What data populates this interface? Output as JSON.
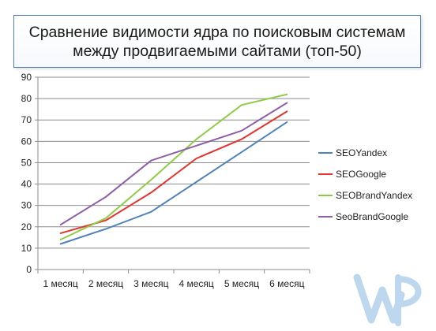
{
  "chart_data": {
    "type": "line",
    "title_lines": [
      "Сравнение видимости ядра по поисковым системам",
      "между продвигаемыми сайтами (топ-50)"
    ],
    "categories": [
      "1 месяц",
      "2 месяц",
      "3 месяц",
      "4 месяц",
      "5 месяц",
      "6 месяц"
    ],
    "ylim": [
      0,
      90
    ],
    "yticks": [
      0,
      10,
      20,
      30,
      40,
      50,
      60,
      70,
      80,
      90
    ],
    "grid": true,
    "legend_position": "right",
    "series": [
      {
        "name": "SEOYandex",
        "color": "#4f81bd",
        "values": [
          12,
          19,
          27,
          41,
          55,
          69
        ]
      },
      {
        "name": "SEOGoogle",
        "color": "#e3342f",
        "values": [
          17,
          23,
          36,
          52,
          61,
          74
        ]
      },
      {
        "name": "SEOBrandYandex",
        "color": "#8fcc45",
        "values": [
          14,
          24,
          42,
          61,
          77,
          82
        ]
      },
      {
        "name": "SeoBrandGoogle",
        "color": "#8e5ea8",
        "values": [
          21,
          34,
          51,
          58,
          65,
          78
        ]
      }
    ]
  },
  "logo": {
    "name": "wp-logo-icon",
    "color": "#bcd7ee"
  }
}
